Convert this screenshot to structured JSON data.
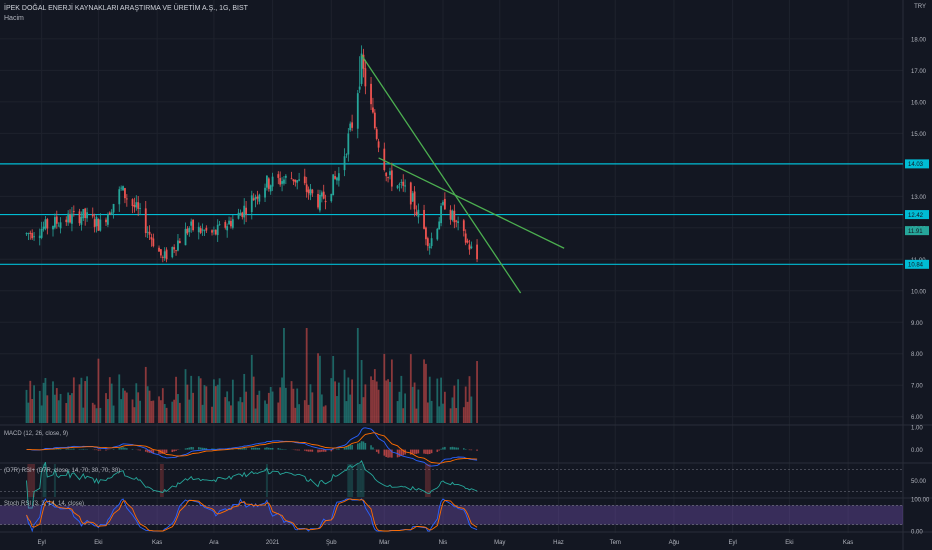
{
  "header": {
    "symbol_title": "İPEK DOĞAL ENERJİ KAYNAKLARI ARAŞTIRMA VE ÜRETİM A.Ş., 1G, BIST",
    "volume_label": "Hacim",
    "currency": "TRY"
  },
  "colors": {
    "background": "#131722",
    "grid": "#1e222d",
    "up": "#26a69a",
    "down": "#ef5350",
    "hline": "#00bcd4",
    "trend": "#4caf50",
    "macd": "#2962ff",
    "signal": "#ff6d00",
    "stoch_k": "#2962ff",
    "stoch_d": "#ff6d00",
    "stoch_band": "#7e57c2"
  },
  "chart_data": [
    {
      "type": "candlestick",
      "title": "İPEK DOĞAL ENERJİ KAYNAKLARI ARAŞTIRMA VE ÜRETİM A.Ş., 1G, BIST",
      "ylim": [
        5.8,
        18.6
      ],
      "y_ticks": [
        "18.00",
        "17.00",
        "16.00",
        "15.00",
        "13.00",
        "12.00",
        "11.00",
        "10.00",
        "9.00",
        "8.00",
        "7.00",
        "6.00"
      ],
      "x_ticks": [
        "Eyl",
        "Eki",
        "Kas",
        "Ara",
        "2021",
        "Şub",
        "Mar",
        "Nis",
        "May",
        "Haz",
        "Tem",
        "Ağu",
        "Eyl",
        "Eki",
        "Kas"
      ],
      "price_labels": [
        "14.03",
        "12.42",
        "11.91",
        "10.84"
      ],
      "horizontal_levels": [
        14.03,
        12.42,
        10.84
      ],
      "trendlines": [
        {
          "from": [
            "2021-02-17",
            17.48
          ],
          "to": [
            "2021-05-12",
            9.93
          ]
        },
        {
          "from": [
            "2021-02-26",
            14.22
          ],
          "to": [
            "2021-06-04",
            11.35
          ]
        }
      ],
      "dates_range": [
        "2020-08-24",
        "2021-04-19"
      ],
      "anchors": [
        [
          "2020-08-24",
          11.8
        ],
        [
          "2020-09-10",
          12.2
        ],
        [
          "2020-09-22",
          12.4
        ],
        [
          "2020-10-02",
          12.1
        ],
        [
          "2020-10-13",
          13.2
        ],
        [
          "2020-10-22",
          12.5
        ],
        [
          "2020-11-04",
          11.0
        ],
        [
          "2020-11-18",
          12.0
        ],
        [
          "2020-12-01",
          11.8
        ],
        [
          "2020-12-14",
          12.4
        ],
        [
          "2020-12-28",
          13.4
        ],
        [
          "2021-01-12",
          13.6
        ],
        [
          "2021-01-26",
          12.8
        ],
        [
          "2021-02-05",
          13.7
        ],
        [
          "2021-02-12",
          15.3
        ],
        [
          "2021-02-17",
          17.2
        ],
        [
          "2021-02-24",
          15.2
        ],
        [
          "2021-03-03",
          13.6
        ],
        [
          "2021-03-15",
          13.0
        ],
        [
          "2021-03-25",
          11.5
        ],
        [
          "2021-04-02",
          12.8
        ],
        [
          "2021-04-08",
          12.1
        ],
        [
          "2021-04-19",
          11.0
        ]
      ],
      "volume_spikes": [
        "2021-01-07",
        "2021-01-19",
        "2021-02-15"
      ]
    },
    {
      "type": "line",
      "title": "MACD (12, 26, close, 9)",
      "ylim": [
        -0.55,
        1.0
      ],
      "y_ticks": [
        "1.00",
        "0.00"
      ],
      "series": [
        {
          "name": "MACD"
        },
        {
          "name": "Signal"
        }
      ]
    },
    {
      "type": "line",
      "title": "(D7R) RSI+ (D7R, close, 14, 70, 30, 70, 30)",
      "ylim": [
        20,
        80
      ],
      "y_ticks": [
        "50.00"
      ],
      "bands": [
        70,
        30
      ]
    },
    {
      "type": "line",
      "title": "Stoch RSI (3, 3, 14, 14, close)",
      "ylim": [
        0,
        100
      ],
      "y_ticks": [
        "100.00",
        "0.00"
      ],
      "bands": [
        80,
        20
      ]
    }
  ]
}
